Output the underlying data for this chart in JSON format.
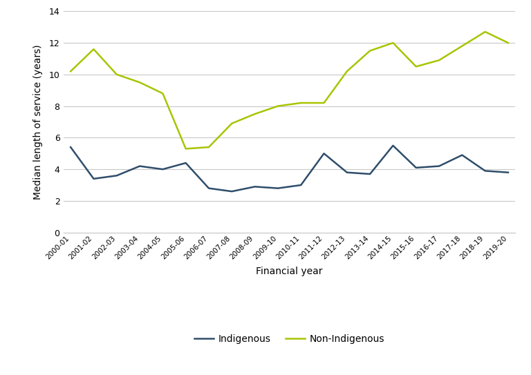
{
  "years": [
    "2000-01",
    "2001-02",
    "2002-03",
    "2003-04",
    "2004-05",
    "2005-06",
    "2006-07",
    "2007-08",
    "2008-09",
    "2009-10",
    "2010-11",
    "2011-12",
    "2012-13",
    "2013-14",
    "2014-15",
    "2015-16",
    "2016-17",
    "2017-18",
    "2018-19",
    "2019-20"
  ],
  "indigenous": [
    5.4,
    3.4,
    3.6,
    4.2,
    4.0,
    4.4,
    2.8,
    2.6,
    2.9,
    2.8,
    3.0,
    5.0,
    3.8,
    3.7,
    5.5,
    4.1,
    4.2,
    4.9,
    3.9,
    3.8
  ],
  "non_indigenous": [
    10.2,
    11.6,
    10.0,
    9.5,
    8.8,
    5.3,
    5.4,
    6.9,
    7.5,
    8.0,
    8.2,
    8.2,
    10.2,
    11.5,
    12.0,
    10.5,
    10.9,
    11.8,
    12.7,
    12.0
  ],
  "indigenous_color": "#2e4d6b",
  "non_indigenous_color": "#a8c400",
  "xlabel": "Financial year",
  "ylabel": "Median length of service (years)",
  "ylim": [
    0,
    14
  ],
  "yticks": [
    0,
    2,
    4,
    6,
    8,
    10,
    12,
    14
  ],
  "legend_labels": [
    "Indigenous",
    "Non-Indigenous"
  ],
  "line_width": 1.8,
  "bg_color": "#ffffff",
  "grid_color": "#c8c8c8"
}
